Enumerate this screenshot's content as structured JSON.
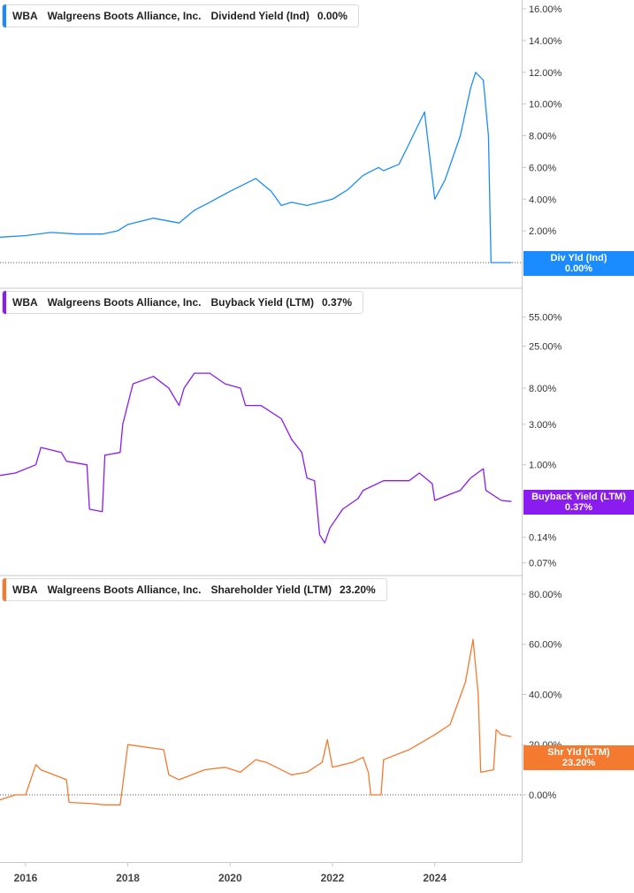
{
  "chart_data": [
    {
      "type": "line",
      "ticker": "WBA",
      "company": "Walgreens Boots Alliance, Inc.",
      "metric": "Dividend Yield (Ind)",
      "value": "0.00%",
      "tag_label": "Div Yld (Ind)",
      "tag_value": "0.00%",
      "color": "#1a8cff",
      "scale": "linear",
      "ylim": [
        0,
        16
      ],
      "ytick_values": [
        2,
        4,
        6,
        8,
        10,
        12,
        14,
        16
      ],
      "ytick_labels": [
        "2.00%",
        "4.00%",
        "6.00%",
        "8.00%",
        "10.00%",
        "12.00%",
        "14.00%",
        "16.00%"
      ],
      "x": [
        2015.5,
        2016.0,
        2016.5,
        2017.0,
        2017.5,
        2017.8,
        2018.0,
        2018.5,
        2019.0,
        2019.3,
        2019.6,
        2020.0,
        2020.5,
        2020.8,
        2021.0,
        2021.2,
        2021.5,
        2022.0,
        2022.3,
        2022.6,
        2022.9,
        2023.0,
        2023.3,
        2023.5,
        2023.8,
        2024.0,
        2024.2,
        2024.5,
        2024.7,
        2024.8,
        2024.95,
        2025.05,
        2025.1,
        2025.5
      ],
      "y": [
        1.6,
        1.7,
        1.9,
        1.8,
        1.8,
        2.0,
        2.4,
        2.8,
        2.5,
        3.3,
        3.8,
        4.5,
        5.3,
        4.5,
        3.6,
        3.8,
        3.6,
        4.0,
        4.6,
        5.5,
        6.0,
        5.8,
        6.2,
        7.5,
        9.5,
        4.0,
        5.2,
        8.0,
        11.0,
        12.0,
        11.5,
        8.0,
        0.0,
        0.0
      ]
    },
    {
      "type": "line",
      "ticker": "WBA",
      "company": "Walgreens Boots Alliance, Inc.",
      "metric": "Buyback Yield (LTM)",
      "value": "0.37%",
      "tag_label": "Buyback Yield (LTM)",
      "tag_value": "0.37%",
      "color": "#8a1cf0",
      "scale": "log",
      "ylim": [
        0.06,
        80
      ],
      "ytick_values": [
        0.07,
        0.14,
        1.0,
        3.0,
        8.0,
        25.0,
        55.0
      ],
      "ytick_labels": [
        "0.07%",
        "0.14%",
        "1.00%",
        "3.00%",
        "8.00%",
        "25.00%",
        "55.00%"
      ],
      "x": [
        2015.5,
        2015.8,
        2016.2,
        2016.3,
        2016.7,
        2016.8,
        2017.2,
        2017.25,
        2017.5,
        2017.55,
        2017.85,
        2017.9,
        2018.1,
        2018.5,
        2018.8,
        2019.0,
        2019.1,
        2019.3,
        2019.6,
        2019.9,
        2020.2,
        2020.3,
        2020.6,
        2021.0,
        2021.2,
        2021.4,
        2021.5,
        2021.65,
        2021.75,
        2021.85,
        2021.95,
        2022.0,
        2022.2,
        2022.5,
        2022.6,
        2023.0,
        2023.5,
        2023.7,
        2023.95,
        2024.0,
        2024.3,
        2024.5,
        2024.7,
        2024.95,
        2025.0,
        2025.3,
        2025.5
      ],
      "y": [
        0.75,
        0.8,
        1.0,
        1.6,
        1.4,
        1.1,
        1.0,
        0.3,
        0.28,
        1.3,
        1.4,
        3.0,
        9.0,
        11.0,
        8.0,
        5.0,
        8.0,
        12.0,
        12.0,
        9.0,
        8.0,
        5.0,
        5.0,
        3.5,
        2.0,
        1.4,
        0.7,
        0.65,
        0.15,
        0.12,
        0.18,
        0.2,
        0.3,
        0.4,
        0.5,
        0.65,
        0.65,
        0.8,
        0.6,
        0.38,
        0.45,
        0.5,
        0.7,
        0.9,
        0.5,
        0.38,
        0.37
      ]
    },
    {
      "type": "line",
      "ticker": "WBA",
      "company": "Walgreens Boots Alliance, Inc.",
      "metric": "Shareholder Yield (LTM)",
      "value": "23.20%",
      "tag_label": "Shr Yld (LTM)",
      "tag_value": "23.20%",
      "color": "#f47a30",
      "scale": "linear",
      "ylim": [
        -12,
        80
      ],
      "ytick_values": [
        0,
        20,
        40,
        60,
        80
      ],
      "ytick_labels": [
        "0.00%",
        "20.00%",
        "40.00%",
        "60.00%",
        "80.00%"
      ],
      "x": [
        2015.5,
        2015.8,
        2016.0,
        2016.2,
        2016.3,
        2016.8,
        2016.85,
        2017.3,
        2017.55,
        2017.6,
        2017.85,
        2018.0,
        2018.7,
        2018.8,
        2019.0,
        2019.5,
        2019.9,
        2020.2,
        2020.5,
        2020.7,
        2021.0,
        2021.2,
        2021.5,
        2021.8,
        2021.9,
        2022.0,
        2022.4,
        2022.6,
        2022.7,
        2022.75,
        2022.95,
        2023.0,
        2023.5,
        2024.0,
        2024.3,
        2024.6,
        2024.75,
        2024.85,
        2024.9,
        2025.15,
        2025.2,
        2025.3,
        2025.5
      ],
      "y": [
        -2,
        0,
        0,
        12,
        10,
        6,
        -3,
        -3.5,
        -4,
        -4,
        -4,
        20,
        18,
        8,
        6,
        10,
        11,
        9,
        14,
        13,
        10,
        8,
        9,
        13,
        22,
        11,
        13,
        15,
        9,
        0,
        0,
        14,
        18,
        24,
        28,
        45,
        62,
        40,
        9,
        10,
        26,
        24,
        23.2
      ]
    }
  ],
  "x_axis": {
    "range": [
      2015.5,
      2025.7
    ],
    "tick_values": [
      2016,
      2018,
      2020,
      2022,
      2024
    ],
    "tick_labels": [
      "2016",
      "2018",
      "2020",
      "2022",
      "2024"
    ]
  }
}
